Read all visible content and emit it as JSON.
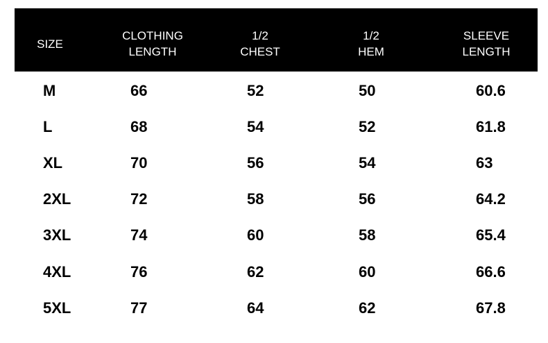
{
  "headers": [
    "SIZE",
    "CLOTHING\nLENGTH",
    "1/2\nCHEST",
    "1/2\nHEM",
    "SLEEVE\nLENGTH"
  ],
  "rows": [
    [
      "M",
      "66",
      "52",
      "50",
      "60.6"
    ],
    [
      "L",
      "68",
      "54",
      "52",
      "61.8"
    ],
    [
      "XL",
      "70",
      "56",
      "54",
      "63"
    ],
    [
      "2XL",
      "72",
      "58",
      "56",
      "64.2"
    ],
    [
      "3XL",
      "74",
      "60",
      "58",
      "65.4"
    ],
    [
      "4XL",
      "76",
      "62",
      "60",
      "66.6"
    ],
    [
      "5XL",
      "77",
      "64",
      "62",
      "67.8"
    ]
  ]
}
